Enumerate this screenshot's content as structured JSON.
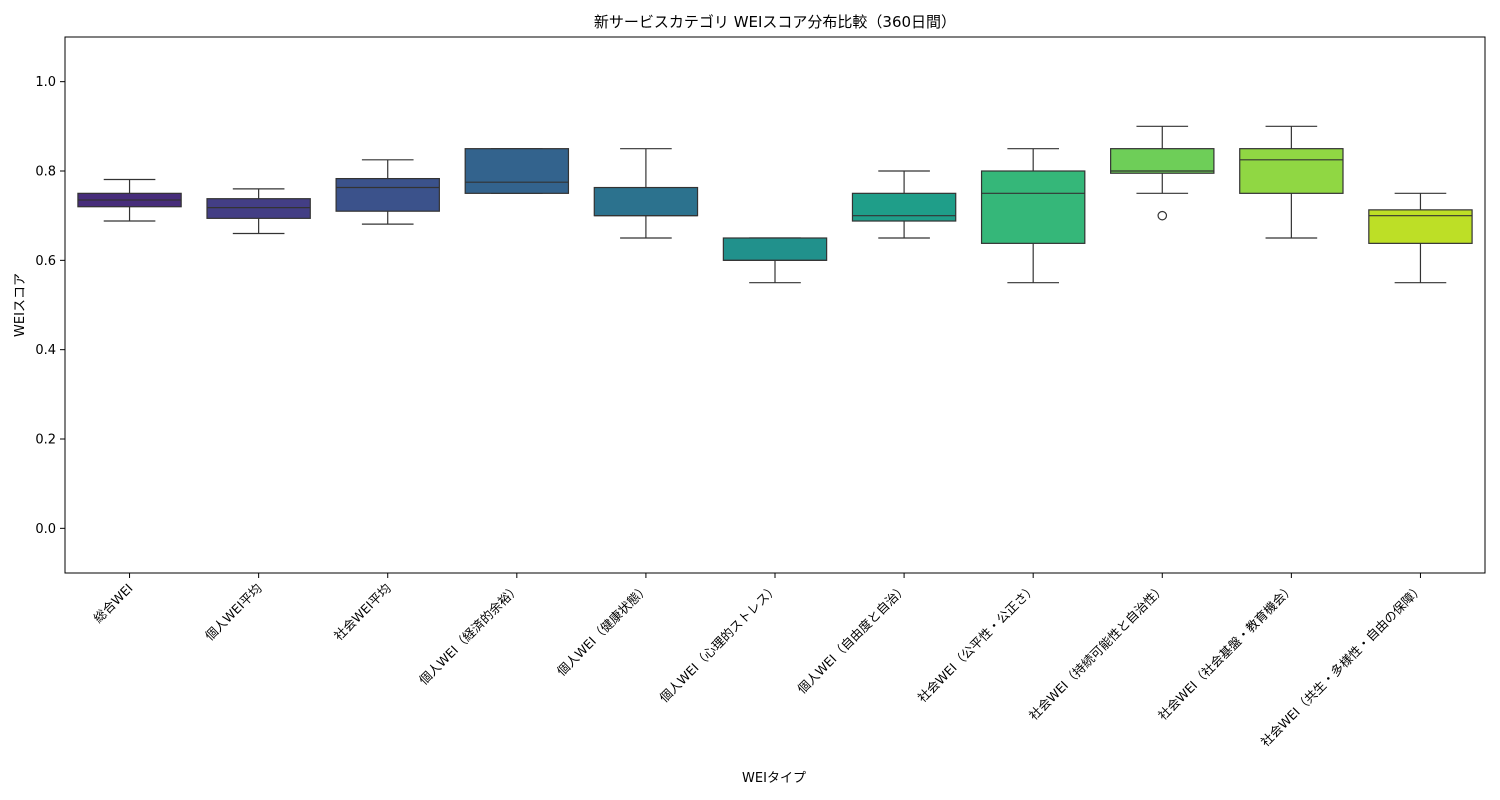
{
  "chart_data": {
    "type": "box",
    "title": "新サービスカテゴリ WEIスコア分布比較（360日間）",
    "xlabel": "WEIタイプ",
    "ylabel": "WEIスコア",
    "ylim": [
      -0.1,
      1.1
    ],
    "yticks": [
      0.0,
      0.2,
      0.4,
      0.6,
      0.8,
      1.0
    ],
    "ytick_labels": [
      "0.0",
      "0.2",
      "0.4",
      "0.6",
      "0.8",
      "1.0"
    ],
    "grid": false,
    "categories": [
      "総合WEI",
      "個人WEI平均",
      "社会WEI平均",
      "個人WEI（経済的余裕）",
      "個人WEI（健康状態）",
      "個人WEI（心理的ストレス）",
      "個人WEI（自由度と自治）",
      "社会WEI（公平性・公正さ）",
      "社会WEI（持続可能性と自治性）",
      "社会WEI（社会基盤・教育機会）",
      "社会WEI（共生・多様性・自由の保障）"
    ],
    "boxes": [
      {
        "whisker_low": 0.688,
        "q1": 0.72,
        "median": 0.735,
        "q3": 0.75,
        "whisker_high": 0.781,
        "outliers": [],
        "color": "#472d7b"
      },
      {
        "whisker_low": 0.66,
        "q1": 0.694,
        "median": 0.718,
        "q3": 0.738,
        "whisker_high": 0.76,
        "outliers": [],
        "color": "#433e85"
      },
      {
        "whisker_low": 0.681,
        "q1": 0.71,
        "median": 0.763,
        "q3": 0.783,
        "whisker_high": 0.825,
        "outliers": [],
        "color": "#3b528b"
      },
      {
        "whisker_low": 0.75,
        "q1": 0.75,
        "median": 0.775,
        "q3": 0.85,
        "whisker_high": 0.85,
        "outliers": [],
        "color": "#33638d"
      },
      {
        "whisker_low": 0.65,
        "q1": 0.7,
        "median": 0.7,
        "q3": 0.763,
        "whisker_high": 0.85,
        "outliers": [],
        "color": "#2c728e"
      },
      {
        "whisker_low": 0.55,
        "q1": 0.6,
        "median": 0.6,
        "q3": 0.65,
        "whisker_high": 0.65,
        "outliers": [],
        "color": "#21918c"
      },
      {
        "whisker_low": 0.65,
        "q1": 0.688,
        "median": 0.7,
        "q3": 0.75,
        "whisker_high": 0.8,
        "outliers": [],
        "color": "#1f9e89"
      },
      {
        "whisker_low": 0.55,
        "q1": 0.638,
        "median": 0.75,
        "q3": 0.8,
        "whisker_high": 0.85,
        "outliers": [],
        "color": "#35b779"
      },
      {
        "whisker_low": 0.75,
        "q1": 0.795,
        "median": 0.8,
        "q3": 0.85,
        "whisker_high": 0.9,
        "outliers": [
          0.7
        ],
        "color": "#6ece58"
      },
      {
        "whisker_low": 0.65,
        "q1": 0.75,
        "median": 0.825,
        "q3": 0.85,
        "whisker_high": 0.9,
        "outliers": [],
        "color": "#90d743"
      },
      {
        "whisker_low": 0.55,
        "q1": 0.638,
        "median": 0.7,
        "q3": 0.713,
        "whisker_high": 0.75,
        "outliers": [],
        "color": "#bddf26"
      }
    ]
  }
}
